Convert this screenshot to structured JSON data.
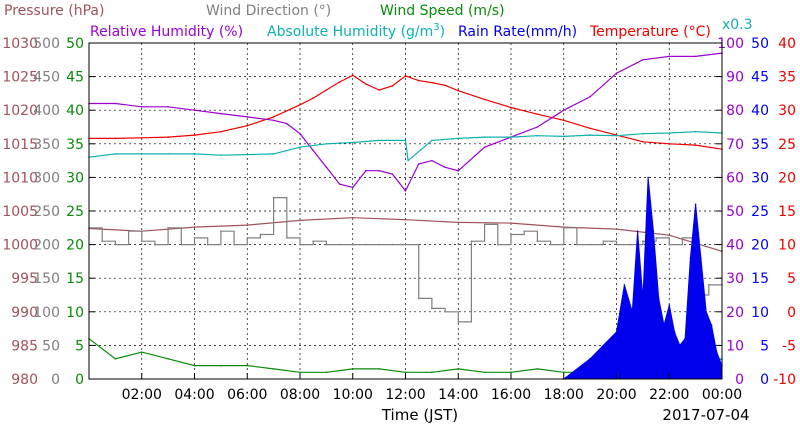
{
  "legend": {
    "pressure": "Pressure (hPa)",
    "wind_direction": "Wind Direction (°)",
    "wind_speed": "Wind Speed (m/s)",
    "relative_humidity": "Relative Humidity (%)",
    "absolute_humidity_pre": "Absolute Humidity (g/m",
    "absolute_humidity_sup": "3",
    "absolute_humidity_post": ")",
    "rain_rate": "Rain Rate(mm/h)",
    "temperature": "Temperature (°C)",
    "temperature_scale": "x0.3"
  },
  "xaxis": {
    "label": "Time (JST)",
    "date": "2017-07-04",
    "ticks": [
      "02:00",
      "04:00",
      "06:00",
      "08:00",
      "10:00",
      "12:00",
      "14:00",
      "16:00",
      "18:00",
      "20:00",
      "22:00",
      "00:00"
    ]
  },
  "colors": {
    "pressure": "#a0525a",
    "wind_direction": "#808080",
    "wind_speed": "#0a8a0a",
    "relative_humidity": "#9b00d0",
    "absolute_humidity": "#10b0b0",
    "rain_rate": "#0000ee",
    "temperature": "#ee0000"
  },
  "chart_data": {
    "type": "line",
    "x_range": [
      "00:00",
      "24:00"
    ],
    "axes": {
      "pressure": {
        "ticks": [
          "980",
          "985",
          "990",
          "995",
          "1000",
          "1005",
          "1010",
          "1015",
          "1020",
          "1025",
          "1030"
        ],
        "range": [
          980,
          1030
        ]
      },
      "wind_direction": {
        "ticks": [
          "0",
          "50",
          "100",
          "150",
          "200",
          "250",
          "300",
          "350",
          "400",
          "450",
          "500"
        ],
        "range": [
          0,
          500
        ]
      },
      "wind_speed": {
        "ticks": [
          "0",
          "5",
          "10",
          "15",
          "20",
          "25",
          "30",
          "35",
          "40",
          "45",
          "50"
        ],
        "range": [
          0,
          50
        ]
      },
      "relative_humidity": {
        "ticks": [
          "0",
          "10",
          "20",
          "30",
          "40",
          "50",
          "60",
          "70",
          "80",
          "90",
          "100"
        ],
        "range": [
          0,
          100
        ]
      },
      "rain_rate": {
        "ticks": [
          "0",
          "5",
          "10",
          "15",
          "20",
          "25",
          "30",
          "35",
          "40",
          "45",
          "50"
        ],
        "range": [
          0,
          50
        ]
      },
      "temperature": {
        "ticks": [
          "-10",
          "-5",
          "0",
          "5",
          "10",
          "15",
          "20",
          "25",
          "30",
          "35",
          "40"
        ],
        "range": [
          -10,
          40
        ]
      }
    },
    "grid": true,
    "series": [
      {
        "name": "Temperature (°C)",
        "axis": "temperature",
        "x": [
          0,
          1,
          2,
          3,
          4,
          5,
          6,
          7,
          8,
          8.5,
          9,
          9.5,
          10,
          10.5,
          11,
          11.5,
          12,
          12.5,
          13,
          13.5,
          14,
          15,
          16,
          17,
          18,
          19,
          20,
          21,
          22,
          23,
          24
        ],
        "values": [
          25.8,
          25.8,
          25.9,
          26.0,
          26.3,
          26.8,
          27.7,
          29.0,
          30.8,
          31.8,
          33.0,
          34.2,
          35.2,
          33.9,
          33.0,
          33.6,
          35.1,
          34.4,
          34.1,
          33.7,
          32.9,
          31.6,
          30.4,
          29.4,
          28.5,
          27.3,
          26.3,
          25.3,
          25.0,
          24.8,
          24.2
        ]
      },
      {
        "name": "Relative Humidity (%)",
        "axis": "relative_humidity",
        "x": [
          0,
          1,
          2,
          3,
          4,
          5,
          6,
          7,
          7.5,
          8,
          8.5,
          9,
          9.5,
          10,
          10.5,
          11,
          11.5,
          12,
          12.5,
          13,
          13.5,
          14,
          15,
          16,
          17,
          18,
          19,
          20,
          21,
          22,
          23,
          24
        ],
        "values": [
          82,
          82,
          81,
          81,
          80,
          79,
          78,
          77,
          76,
          73,
          68,
          63,
          58,
          57,
          62,
          62,
          61,
          56,
          64,
          65,
          63,
          62,
          69,
          72,
          75,
          80,
          84,
          91,
          95,
          96,
          96,
          97
        ]
      },
      {
        "name": "Absolute Humidity (g/m3)",
        "axis": "wind_speed",
        "x": [
          0,
          1,
          2,
          3,
          4,
          5,
          6,
          7,
          8,
          9,
          10,
          11,
          12,
          12.1,
          13,
          14,
          15,
          16,
          17,
          18,
          19,
          20,
          21,
          22,
          23,
          24
        ],
        "values": [
          33,
          33.5,
          33.5,
          33.5,
          33.5,
          33.3,
          33.4,
          33.5,
          34.5,
          35,
          35.2,
          35.5,
          35.5,
          32.5,
          35.5,
          35.8,
          36,
          36,
          36.2,
          36.1,
          36.3,
          36.2,
          36.5,
          36.6,
          36.8,
          36.6
        ]
      },
      {
        "name": "Pressure (hPa)",
        "axis": "pressure",
        "x": [
          0,
          2,
          4,
          6,
          8,
          10,
          12,
          14,
          16,
          18,
          20,
          22,
          24
        ],
        "values": [
          1002.4,
          1002.0,
          1002.6,
          1002.9,
          1003.6,
          1004.0,
          1003.7,
          1003.3,
          1003.2,
          1002.6,
          1002.3,
          1001.4,
          999.0
        ]
      },
      {
        "name": "Wind Direction (°)",
        "axis": "wind_direction",
        "x": [
          0,
          0.5,
          1,
          1.5,
          2,
          2.5,
          3,
          3.5,
          4,
          4.5,
          5,
          5.5,
          6,
          6.5,
          7,
          7.5,
          8,
          8.5,
          9,
          9.5,
          10,
          10.5,
          11,
          11.5,
          12,
          12.5,
          13,
          13.5,
          14,
          14.5,
          15,
          15.5,
          16,
          16.5,
          17,
          17.5,
          18,
          18.5,
          19,
          19.5,
          20,
          20.5,
          21,
          21.5,
          22,
          22.5,
          23,
          23.5,
          24
        ],
        "values": [
          225,
          205,
          200,
          220,
          205,
          200,
          225,
          200,
          210,
          200,
          220,
          200,
          210,
          215,
          270,
          210,
          200,
          205,
          200,
          200,
          200,
          200,
          200,
          200,
          200,
          120,
          105,
          100,
          85,
          205,
          230,
          200,
          215,
          220,
          205,
          200,
          225,
          200,
          200,
          205,
          200,
          200,
          205,
          210,
          200,
          210,
          125,
          140,
          140
        ]
      },
      {
        "name": "Wind Speed (m/s)",
        "axis": "wind_speed",
        "x": [
          0,
          1,
          2,
          3,
          4,
          5,
          6,
          7,
          8,
          9,
          10,
          11,
          12,
          13,
          14,
          15,
          16,
          17,
          18,
          19,
          20,
          21,
          22,
          23,
          24
        ],
        "values": [
          6,
          3,
          4,
          3,
          2,
          2,
          2,
          1.5,
          1,
          1,
          1.5,
          1.5,
          1,
          1,
          1.5,
          1,
          1,
          1.5,
          1,
          1,
          0.5,
          1.5,
          1,
          2,
          3
        ]
      },
      {
        "name": "Rain Rate(mm/h)",
        "axis": "rain_rate",
        "x": [
          18,
          19,
          19.5,
          20,
          20.3,
          20.6,
          20.8,
          21,
          21.2,
          21.4,
          21.6,
          21.8,
          22,
          22.2,
          22.4,
          22.6,
          22.8,
          23,
          23.2,
          23.4,
          23.6,
          23.8,
          24
        ],
        "values": [
          0,
          3,
          5,
          7,
          14,
          10,
          22,
          12,
          30,
          22,
          12,
          8,
          11,
          7,
          5,
          6,
          18,
          26,
          18,
          10,
          8,
          4,
          2
        ]
      }
    ]
  }
}
